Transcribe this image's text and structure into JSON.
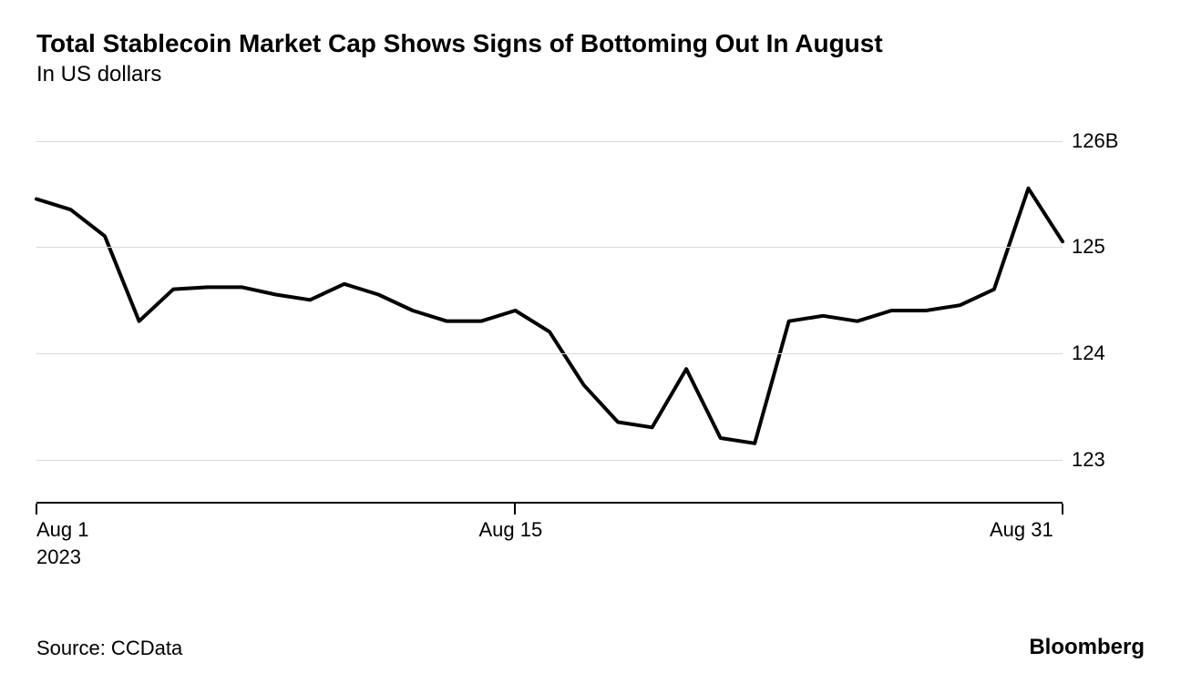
{
  "chart": {
    "type": "line",
    "title": "Total Stablecoin Market Cap Shows Signs of Bottoming Out In August",
    "subtitle": "In US dollars",
    "source": "Source: CCData",
    "brand": "Bloomberg",
    "background_color": "#ffffff",
    "grid_color": "#d9d9d9",
    "axis_color": "#000000",
    "line_color": "#000000",
    "line_width": 4,
    "title_fontsize": 28,
    "subtitle_fontsize": 24,
    "label_fontsize": 22,
    "y_axis": {
      "min": 122.6,
      "max": 126.2,
      "ticks": [
        123,
        124,
        125,
        126
      ],
      "tick_labels": [
        "123",
        "124",
        "125",
        "126B"
      ]
    },
    "x_axis": {
      "min": 1,
      "max": 31,
      "ticks": [
        1,
        15,
        31
      ],
      "tick_labels": [
        "Aug 1",
        "Aug 15",
        "Aug 31"
      ],
      "year_label": "2023",
      "year_label_at": 1
    },
    "series": {
      "x": [
        1,
        2,
        3,
        4,
        5,
        6,
        7,
        8,
        9,
        10,
        11,
        12,
        13,
        14,
        15,
        16,
        17,
        18,
        19,
        20,
        21,
        22,
        23,
        24,
        25,
        26,
        27,
        28,
        29,
        30,
        31
      ],
      "y": [
        125.45,
        125.35,
        125.1,
        124.3,
        124.6,
        124.62,
        124.62,
        124.55,
        124.5,
        124.65,
        124.55,
        124.4,
        124.3,
        124.3,
        124.4,
        124.2,
        123.7,
        123.35,
        123.3,
        123.85,
        123.2,
        123.15,
        124.3,
        124.35,
        124.3,
        124.4,
        124.4,
        124.45,
        124.6,
        125.55,
        125.05
      ]
    }
  }
}
